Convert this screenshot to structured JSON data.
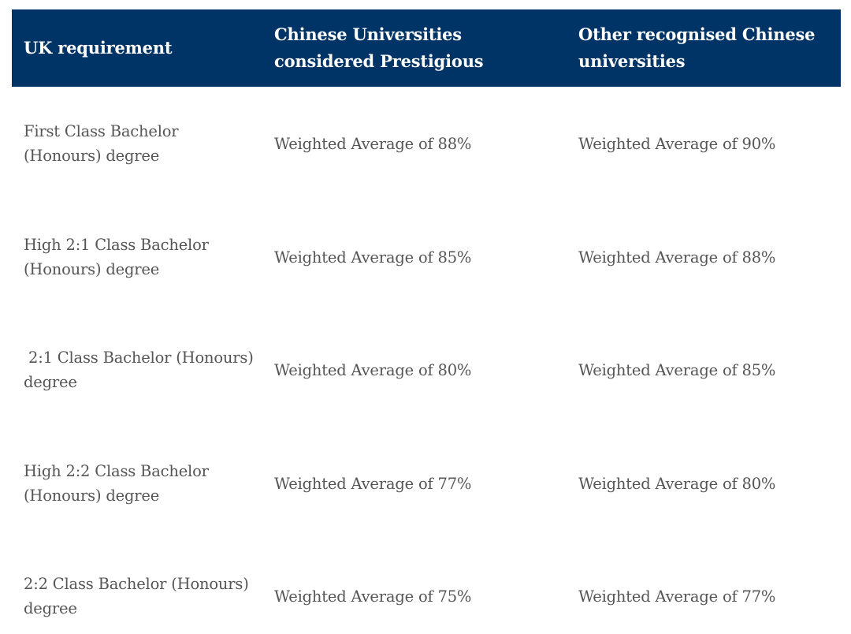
{
  "table": {
    "headers": [
      "UK requirement",
      "Chinese Universities considered Prestigious",
      "Other recognised Chinese universities"
    ],
    "rows": [
      {
        "uk_requirement": "First Class Bachelor (Honours) degree",
        "prestigious": "Weighted Average of 88%",
        "other": "Weighted Average of 90%"
      },
      {
        "uk_requirement": "High 2:1 Class Bachelor (Honours) degree",
        "prestigious": "Weighted Average of 85%",
        "other": "Weighted Average of 88%"
      },
      {
        "uk_requirement": " 2:1 Class Bachelor (Honours) degree",
        "prestigious": "Weighted Average of 80%",
        "other": "Weighted Average of 85%"
      },
      {
        "uk_requirement": "High 2:2 Class Bachelor (Honours) degree",
        "prestigious": "Weighted Average of 77%",
        "other": "Weighted Average of 80%"
      },
      {
        "uk_requirement": "2:2 Class Bachelor (Honours) degree",
        "prestigious": "Weighted Average of 75%",
        "other": "Weighted Average of 77%"
      }
    ]
  },
  "colors": {
    "header_background": "#003366",
    "header_text": "#ffffff",
    "body_text": "#555555"
  }
}
